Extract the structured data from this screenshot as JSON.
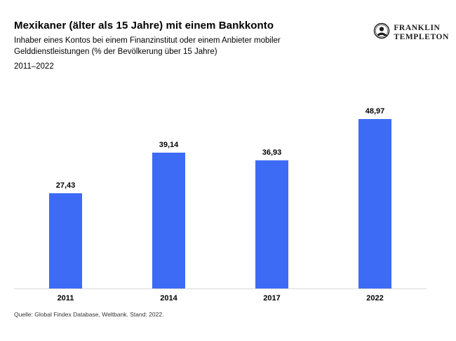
{
  "header": {
    "title": "Mexikaner (älter als 15 Jahre) mit einem Bankkonto",
    "subtitle_line1": "Inhaber eines Kontos bei einem Finanzinstitut oder einem Anbieter mobiler",
    "subtitle_line2": "Gelddienstleistungen (% der Bevölkerung über 15 Jahre)",
    "period": "2011–2022"
  },
  "logo": {
    "line1": "FRANKLIN",
    "line2": "TEMPLETON"
  },
  "chart_data": {
    "type": "bar",
    "title": "Mexikaner (älter als 15 Jahre) mit einem Bankkonto",
    "subtitle": "Inhaber eines Kontos bei einem Finanzinstitut oder einem Anbieter mobiler Gelddienstleistungen (% der Bevölkerung über 15 Jahre)",
    "period": "2011–2022",
    "categories": [
      "2011",
      "2014",
      "2017",
      "2022"
    ],
    "values": [
      27.43,
      39.14,
      36.93,
      48.97
    ],
    "value_labels": [
      "27,43",
      "39,14",
      "36,93",
      "48,97"
    ],
    "xlabel": "",
    "ylabel": "% der Bevölkerung über 15 Jahre",
    "ylim": [
      0,
      55
    ],
    "grid": false,
    "legend": false,
    "bar_color": "#3d6bf5",
    "axis_line_color": "#d9d9d9"
  },
  "footer": {
    "source": "Quelle: Global Findex Database,  Weltbank.  Stand: 2022."
  }
}
